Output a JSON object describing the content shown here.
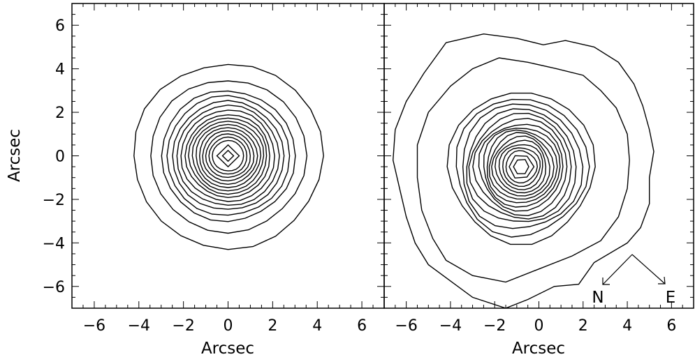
{
  "chart_data": [
    {
      "type": "contour",
      "panel": "left",
      "title": "",
      "xlabel": "Arcsec",
      "ylabel": "Arcsec",
      "xlim": [
        -7,
        7
      ],
      "ylim": [
        -7,
        7
      ],
      "xticks": [
        -6,
        -4,
        -2,
        0,
        2,
        4,
        6
      ],
      "yticks": [
        -6,
        -4,
        -2,
        0,
        2,
        4,
        6
      ],
      "center": [
        0,
        0
      ],
      "contour_radii_outer_to_inner": [
        4.25,
        3.5,
        3.0,
        2.75,
        2.5,
        2.3,
        2.1,
        1.9,
        1.75,
        1.6,
        1.45,
        1.3,
        1.15,
        1.0,
        0.85,
        0.7,
        0.5,
        0.25
      ]
    },
    {
      "type": "contour",
      "panel": "right",
      "title": "",
      "xlabel": "Arcsec",
      "ylabel": "",
      "xlim": [
        -7,
        7
      ],
      "ylim": [
        -7,
        7
      ],
      "xticks": [
        -6,
        -4,
        -2,
        0,
        2,
        4,
        6
      ],
      "yticks": [
        -6,
        -4,
        -2,
        0,
        2,
        4,
        6
      ],
      "center": [
        -0.8,
        -0.5
      ],
      "outer_contours": [
        {
          "name": "outer-1",
          "points": [
            [
              -4.2,
              5.2
            ],
            [
              -2.5,
              5.6
            ],
            [
              -1.0,
              5.4
            ],
            [
              0.2,
              5.1
            ],
            [
              1.2,
              5.3
            ],
            [
              2.5,
              5.0
            ],
            [
              3.6,
              4.3
            ],
            [
              4.3,
              3.3
            ],
            [
              4.7,
              2.3
            ],
            [
              5.0,
              1.2
            ],
            [
              5.2,
              0.2
            ],
            [
              5.0,
              -1.0
            ],
            [
              5.0,
              -2.2
            ],
            [
              4.6,
              -3.3
            ],
            [
              4.0,
              -4.0
            ],
            [
              2.5,
              -4.9
            ],
            [
              1.8,
              -5.9
            ],
            [
              0.7,
              -6.0
            ],
            [
              -0.5,
              -6.6
            ],
            [
              -1.5,
              -7.0
            ],
            [
              -3.0,
              -6.5
            ],
            [
              -4.2,
              -5.6
            ],
            [
              -5.0,
              -5.0
            ],
            [
              -5.6,
              -4.0
            ],
            [
              -6.0,
              -2.8
            ],
            [
              -6.3,
              -1.5
            ],
            [
              -6.6,
              -0.2
            ],
            [
              -6.5,
              1.2
            ],
            [
              -6.0,
              2.5
            ],
            [
              -5.2,
              3.8
            ]
          ]
        },
        {
          "name": "outer-2",
          "points": [
            [
              -4.0,
              3.2
            ],
            [
              -3.0,
              4.0
            ],
            [
              -1.8,
              4.5
            ],
            [
              -0.5,
              4.3
            ],
            [
              0.8,
              4.0
            ],
            [
              2.0,
              3.7
            ],
            [
              2.8,
              3.0
            ],
            [
              3.5,
              2.2
            ],
            [
              4.0,
              1.0
            ],
            [
              4.1,
              -0.2
            ],
            [
              4.0,
              -1.5
            ],
            [
              3.6,
              -2.8
            ],
            [
              2.8,
              -3.9
            ],
            [
              1.5,
              -4.6
            ],
            [
              0.0,
              -5.2
            ],
            [
              -1.5,
              -5.8
            ],
            [
              -3.0,
              -5.5
            ],
            [
              -4.2,
              -4.8
            ],
            [
              -4.8,
              -3.8
            ],
            [
              -5.3,
              -2.5
            ],
            [
              -5.5,
              -1.0
            ],
            [
              -5.5,
              0.5
            ],
            [
              -5.0,
              2.0
            ]
          ]
        }
      ],
      "inner_contour_radii": [
        3.3,
        3.0,
        2.75,
        2.5,
        2.3,
        2.1,
        1.9,
        1.75,
        1.6,
        1.45,
        1.3,
        1.15,
        1.0,
        0.85,
        0.7,
        0.55,
        0.35
      ],
      "compass": {
        "north_label": "N",
        "east_label": "E"
      }
    }
  ]
}
